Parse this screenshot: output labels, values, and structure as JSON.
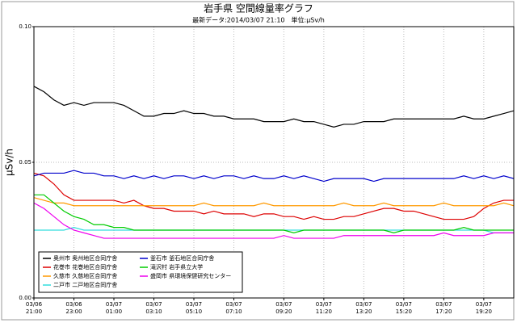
{
  "chart_data": {
    "type": "line",
    "title": "岩手県 空間線量率グラフ",
    "subtitle": "最新データ:2014/03/07 21:10　単位:μSv/h",
    "y_label": "μSv/h",
    "categories": [
      "03/06\n21:00",
      null,
      null,
      null,
      "03/06\n23:00",
      null,
      null,
      null,
      "03/07\n01:00",
      null,
      null,
      null,
      "03/07\n03:10",
      null,
      null,
      null,
      "03/07\n05:10",
      null,
      null,
      null,
      "03/07\n07:10",
      null,
      null,
      null,
      null,
      "03/07\n09:20",
      null,
      null,
      null,
      "03/07\n11:20",
      null,
      null,
      null,
      "03/07\n13:20",
      null,
      null,
      null,
      "03/07\n15:20",
      null,
      null,
      null,
      "03/07\n17:20",
      null,
      null,
      null,
      "03/07\n19:20",
      null,
      null,
      null
    ],
    "ylim": [
      0,
      0.1
    ],
    "yticks": [
      {
        "value": 0,
        "label": "0.00"
      },
      {
        "value": 0.05,
        "label": "0.05"
      },
      {
        "value": 0.1,
        "label": "0.10"
      }
    ],
    "grid": true,
    "legend": "lower left",
    "series": [
      {
        "name": "奥州市 奥州地区合同庁舎",
        "color": "#000000",
        "values": [
          0.078,
          0.076,
          0.073,
          0.071,
          0.072,
          0.071,
          0.072,
          0.072,
          0.072,
          0.071,
          0.069,
          0.067,
          0.067,
          0.068,
          0.068,
          0.069,
          0.068,
          0.068,
          0.067,
          0.067,
          0.066,
          0.066,
          0.066,
          0.065,
          0.065,
          0.065,
          0.066,
          0.065,
          0.065,
          0.064,
          0.063,
          0.064,
          0.064,
          0.065,
          0.065,
          0.065,
          0.066,
          0.066,
          0.066,
          0.066,
          0.066,
          0.066,
          0.066,
          0.067,
          0.066,
          0.066,
          0.067,
          0.068,
          0.069
        ]
      },
      {
        "name": "花巻市 花巻地区合同庁舎",
        "color": "#dd0000",
        "values": [
          0.046,
          0.045,
          0.042,
          0.038,
          0.036,
          0.036,
          0.036,
          0.036,
          0.036,
          0.035,
          0.036,
          0.034,
          0.033,
          0.033,
          0.032,
          0.032,
          0.032,
          0.031,
          0.032,
          0.031,
          0.031,
          0.031,
          0.03,
          0.031,
          0.031,
          0.03,
          0.03,
          0.029,
          0.03,
          0.029,
          0.029,
          0.03,
          0.03,
          0.031,
          0.032,
          0.033,
          0.033,
          0.032,
          0.032,
          0.031,
          0.03,
          0.029,
          0.029,
          0.029,
          0.03,
          0.033,
          0.035,
          0.036,
          0.036
        ]
      },
      {
        "name": "久慈市 久慈地区合同庁舎",
        "color": "#ff9900",
        "values": [
          0.037,
          0.036,
          0.035,
          0.035,
          0.034,
          0.034,
          0.034,
          0.034,
          0.034,
          0.034,
          0.034,
          0.034,
          0.034,
          0.034,
          0.034,
          0.034,
          0.034,
          0.035,
          0.034,
          0.034,
          0.034,
          0.034,
          0.034,
          0.035,
          0.034,
          0.034,
          0.034,
          0.034,
          0.034,
          0.034,
          0.034,
          0.035,
          0.034,
          0.034,
          0.034,
          0.035,
          0.034,
          0.034,
          0.034,
          0.034,
          0.034,
          0.035,
          0.034,
          0.034,
          0.034,
          0.034,
          0.034,
          0.035,
          0.034
        ]
      },
      {
        "name": "二戸市 二戸地区合同庁舎",
        "color": "#33dddd",
        "values": [
          0.025,
          0.025,
          0.025,
          0.025,
          0.026,
          0.025,
          0.025,
          0.025,
          0.025,
          0.025,
          0.025,
          0.025,
          0.025,
          0.025,
          0.025,
          0.025,
          0.025,
          0.025,
          0.025,
          0.025,
          0.025,
          0.025,
          0.025,
          0.025,
          0.025,
          0.025,
          0.025,
          0.025,
          0.025,
          0.025,
          0.025,
          0.025,
          0.025,
          0.025,
          0.025,
          0.025,
          0.025,
          0.025,
          0.025,
          0.025,
          0.025,
          0.025,
          0.025,
          0.025,
          0.025,
          0.025,
          0.024,
          0.024,
          0.024
        ]
      },
      {
        "name": "釜石市 釜石地区合同庁舎",
        "color": "#0000cc",
        "values": [
          0.045,
          0.046,
          0.046,
          0.046,
          0.047,
          0.046,
          0.046,
          0.045,
          0.045,
          0.044,
          0.045,
          0.044,
          0.045,
          0.044,
          0.045,
          0.045,
          0.044,
          0.045,
          0.044,
          0.045,
          0.045,
          0.044,
          0.045,
          0.044,
          0.044,
          0.045,
          0.044,
          0.045,
          0.044,
          0.043,
          0.044,
          0.044,
          0.044,
          0.044,
          0.043,
          0.044,
          0.044,
          0.044,
          0.044,
          0.044,
          0.044,
          0.044,
          0.044,
          0.045,
          0.044,
          0.045,
          0.044,
          0.045,
          0.044
        ]
      },
      {
        "name": "滝沢村 岩手県立大学",
        "color": "#00cc00",
        "values": [
          0.038,
          0.038,
          0.035,
          0.032,
          0.03,
          0.029,
          0.027,
          0.027,
          0.026,
          0.026,
          0.025,
          0.025,
          0.025,
          0.025,
          0.025,
          0.025,
          0.025,
          0.025,
          0.025,
          0.025,
          0.025,
          0.025,
          0.025,
          0.025,
          0.025,
          0.025,
          0.024,
          0.025,
          0.025,
          0.025,
          0.025,
          0.025,
          0.025,
          0.025,
          0.025,
          0.025,
          0.024,
          0.025,
          0.025,
          0.025,
          0.025,
          0.025,
          0.025,
          0.026,
          0.025,
          0.025,
          0.025,
          0.025,
          0.025
        ]
      },
      {
        "name": "盛岡市 県環境保健研究センター",
        "color": "#ee00ee",
        "values": [
          0.035,
          0.033,
          0.03,
          0.027,
          0.025,
          0.024,
          0.023,
          0.022,
          0.022,
          0.022,
          0.022,
          0.022,
          0.022,
          0.022,
          0.022,
          0.022,
          0.022,
          0.022,
          0.022,
          0.022,
          0.022,
          0.022,
          0.022,
          0.022,
          0.022,
          0.023,
          0.022,
          0.022,
          0.022,
          0.022,
          0.022,
          0.023,
          0.023,
          0.023,
          0.023,
          0.023,
          0.023,
          0.023,
          0.023,
          0.023,
          0.023,
          0.024,
          0.023,
          0.023,
          0.023,
          0.023,
          0.024,
          0.024,
          0.024
        ]
      }
    ]
  }
}
